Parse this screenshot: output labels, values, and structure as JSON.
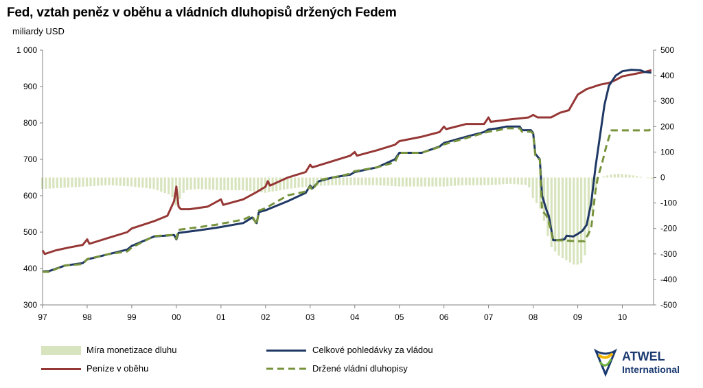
{
  "title": "Fed, vztah peněz v oběhu a vládních dluhopisů držených Fedem",
  "subtitle": "miliardy USD",
  "logo": {
    "line1": "ATWEL",
    "line2": "International"
  },
  "chart_data": {
    "type": "line",
    "x_ticks": [
      "97",
      "98",
      "99",
      "00",
      "01",
      "02",
      "03",
      "04",
      "05",
      "06",
      "07",
      "08",
      "09",
      "10"
    ],
    "x_range": [
      1997.0,
      2010.7
    ],
    "y_left": {
      "range": [
        300,
        1000
      ],
      "ticks": [
        "300",
        "400",
        "500",
        "600",
        "700",
        "800",
        "900",
        "1 000"
      ]
    },
    "y_right": {
      "range": [
        -500,
        500
      ],
      "ticks": [
        "-500",
        "-400",
        "-300",
        "-200",
        "-100",
        "0",
        "100",
        "200",
        "300",
        "400",
        "500"
      ]
    },
    "series": [
      {
        "name": "Míra monetizace dluhu",
        "type": "bar",
        "axis": "right",
        "color": "#d7e4bd",
        "points": [
          [
            1997.0,
            -45
          ],
          [
            1997.5,
            -40
          ],
          [
            1998.0,
            -35
          ],
          [
            1998.5,
            -30
          ],
          [
            1999.0,
            -35
          ],
          [
            1999.5,
            -45
          ],
          [
            1999.9,
            -70
          ],
          [
            2000.0,
            -110
          ],
          [
            2000.2,
            -50
          ],
          [
            2000.5,
            -45
          ],
          [
            2001.0,
            -50
          ],
          [
            2001.5,
            -50
          ],
          [
            2002.0,
            -60
          ],
          [
            2002.5,
            -45
          ],
          [
            2003.0,
            -35
          ],
          [
            2003.5,
            -30
          ],
          [
            2004.0,
            -30
          ],
          [
            2004.5,
            -30
          ],
          [
            2005.0,
            -35
          ],
          [
            2005.5,
            -35
          ],
          [
            2006.0,
            -35
          ],
          [
            2006.5,
            -30
          ],
          [
            2007.0,
            -30
          ],
          [
            2007.5,
            -25
          ],
          [
            2007.9,
            -30
          ],
          [
            2008.0,
            -80
          ],
          [
            2008.2,
            -130
          ],
          [
            2008.3,
            -210
          ],
          [
            2008.4,
            -270
          ],
          [
            2008.6,
            -310
          ],
          [
            2008.8,
            -330
          ],
          [
            2008.95,
            -345
          ],
          [
            2009.1,
            -335
          ],
          [
            2009.2,
            -290
          ],
          [
            2009.3,
            -170
          ],
          [
            2009.4,
            -50
          ],
          [
            2009.5,
            0
          ],
          [
            2009.7,
            10
          ],
          [
            2009.9,
            15
          ],
          [
            2010.2,
            10
          ],
          [
            2010.5,
            0
          ],
          [
            2010.65,
            -5
          ]
        ]
      },
      {
        "name": "Peníze v oběhu",
        "type": "line",
        "axis": "left",
        "color": "#953735",
        "points": [
          [
            1997.0,
            450
          ],
          [
            1997.05,
            440
          ],
          [
            1997.3,
            450
          ],
          [
            1997.6,
            458
          ],
          [
            1997.9,
            465
          ],
          [
            1998.0,
            480
          ],
          [
            1998.05,
            468
          ],
          [
            1998.5,
            485
          ],
          [
            1998.9,
            500
          ],
          [
            1999.0,
            510
          ],
          [
            1999.5,
            530
          ],
          [
            1999.8,
            545
          ],
          [
            1999.95,
            585
          ],
          [
            2000.0,
            625
          ],
          [
            2000.05,
            570
          ],
          [
            2000.1,
            563
          ],
          [
            2000.3,
            563
          ],
          [
            2000.7,
            570
          ],
          [
            2001.0,
            590
          ],
          [
            2001.05,
            575
          ],
          [
            2001.5,
            590
          ],
          [
            2001.8,
            610
          ],
          [
            2002.0,
            625
          ],
          [
            2002.05,
            640
          ],
          [
            2002.1,
            628
          ],
          [
            2002.5,
            650
          ],
          [
            2002.9,
            665
          ],
          [
            2003.0,
            685
          ],
          [
            2003.05,
            678
          ],
          [
            2003.5,
            695
          ],
          [
            2003.9,
            710
          ],
          [
            2004.0,
            720
          ],
          [
            2004.05,
            710
          ],
          [
            2004.5,
            725
          ],
          [
            2004.9,
            740
          ],
          [
            2005.0,
            750
          ],
          [
            2005.5,
            762
          ],
          [
            2005.9,
            775
          ],
          [
            2006.0,
            790
          ],
          [
            2006.05,
            783
          ],
          [
            2006.5,
            797
          ],
          [
            2006.9,
            797
          ],
          [
            2007.0,
            815
          ],
          [
            2007.05,
            803
          ],
          [
            2007.5,
            810
          ],
          [
            2007.9,
            815
          ],
          [
            2008.0,
            822
          ],
          [
            2008.1,
            815
          ],
          [
            2008.4,
            815
          ],
          [
            2008.6,
            828
          ],
          [
            2008.8,
            835
          ],
          [
            2009.0,
            878
          ],
          [
            2009.2,
            893
          ],
          [
            2009.5,
            905
          ],
          [
            2009.7,
            910
          ],
          [
            2009.85,
            918
          ],
          [
            2010.0,
            928
          ],
          [
            2010.3,
            935
          ],
          [
            2010.5,
            940
          ],
          [
            2010.65,
            945
          ]
        ]
      },
      {
        "name": "Celkové pohledávky za vládou",
        "type": "line",
        "axis": "left",
        "color": "#1f3864",
        "points": [
          [
            1997.0,
            392
          ],
          [
            1997.15,
            393
          ],
          [
            1997.5,
            408
          ],
          [
            1997.9,
            415
          ],
          [
            1998.0,
            425
          ],
          [
            1998.5,
            440
          ],
          [
            1998.9,
            452
          ],
          [
            1999.0,
            462
          ],
          [
            1999.5,
            488
          ],
          [
            1999.95,
            492
          ],
          [
            2000.0,
            480
          ],
          [
            2000.05,
            498
          ],
          [
            2000.5,
            505
          ],
          [
            2000.9,
            512
          ],
          [
            2001.5,
            525
          ],
          [
            2001.7,
            540
          ],
          [
            2001.8,
            525
          ],
          [
            2001.85,
            555
          ],
          [
            2002.0,
            560
          ],
          [
            2002.5,
            585
          ],
          [
            2002.9,
            608
          ],
          [
            2003.0,
            628
          ],
          [
            2003.05,
            620
          ],
          [
            2003.2,
            640
          ],
          [
            2003.5,
            650
          ],
          [
            2003.9,
            658
          ],
          [
            2004.0,
            665
          ],
          [
            2004.5,
            678
          ],
          [
            2004.9,
            700
          ],
          [
            2005.0,
            718
          ],
          [
            2005.5,
            718
          ],
          [
            2005.9,
            735
          ],
          [
            2006.0,
            745
          ],
          [
            2006.5,
            762
          ],
          [
            2006.9,
            775
          ],
          [
            2007.0,
            782
          ],
          [
            2007.2,
            785
          ],
          [
            2007.4,
            790
          ],
          [
            2007.7,
            790
          ],
          [
            2007.75,
            780
          ],
          [
            2007.95,
            780
          ],
          [
            2008.0,
            772
          ],
          [
            2008.05,
            715
          ],
          [
            2008.15,
            700
          ],
          [
            2008.2,
            600
          ],
          [
            2008.3,
            560
          ],
          [
            2008.35,
            545
          ],
          [
            2008.45,
            478
          ],
          [
            2008.55,
            478
          ],
          [
            2008.7,
            480
          ],
          [
            2008.75,
            490
          ],
          [
            2008.9,
            488
          ],
          [
            2009.0,
            495
          ],
          [
            2009.1,
            503
          ],
          [
            2009.2,
            520
          ],
          [
            2009.3,
            580
          ],
          [
            2009.4,
            680
          ],
          [
            2009.5,
            765
          ],
          [
            2009.6,
            850
          ],
          [
            2009.7,
            902
          ],
          [
            2009.85,
            930
          ],
          [
            2010.0,
            942
          ],
          [
            2010.2,
            946
          ],
          [
            2010.4,
            945
          ],
          [
            2010.5,
            940
          ],
          [
            2010.65,
            938
          ]
        ]
      },
      {
        "name": "Držené vládní dluhopisy",
        "type": "line",
        "dashed": true,
        "axis": "right",
        "color": "#77933c",
        "points": [
          [
            1997.0,
            -370
          ],
          [
            1997.15,
            -370
          ],
          [
            1997.5,
            -345
          ],
          [
            1997.9,
            -340
          ],
          [
            1998.0,
            -320
          ],
          [
            1998.5,
            -300
          ],
          [
            1998.9,
            -290
          ],
          [
            1999.0,
            -275
          ],
          [
            1999.5,
            -230
          ],
          [
            1999.95,
            -225
          ],
          [
            2000.0,
            -240
          ],
          [
            2000.05,
            -205
          ],
          [
            2000.5,
            -195
          ],
          [
            2000.9,
            -185
          ],
          [
            2001.5,
            -165
          ],
          [
            2001.7,
            -150
          ],
          [
            2001.8,
            -185
          ],
          [
            2001.85,
            -130
          ],
          [
            2002.0,
            -120
          ],
          [
            2002.5,
            -70
          ],
          [
            2002.9,
            -55
          ],
          [
            2003.0,
            -35
          ],
          [
            2003.05,
            -50
          ],
          [
            2003.2,
            -10
          ],
          [
            2003.5,
            0
          ],
          [
            2003.9,
            15
          ],
          [
            2004.0,
            25
          ],
          [
            2004.5,
            40
          ],
          [
            2004.9,
            60
          ],
          [
            2005.0,
            97
          ],
          [
            2005.5,
            97
          ],
          [
            2005.9,
            120
          ],
          [
            2006.0,
            130
          ],
          [
            2006.5,
            155
          ],
          [
            2006.9,
            175
          ],
          [
            2007.0,
            180
          ],
          [
            2007.2,
            185
          ],
          [
            2007.4,
            193
          ],
          [
            2007.7,
            193
          ],
          [
            2007.75,
            180
          ],
          [
            2007.95,
            180
          ],
          [
            2008.0,
            172
          ],
          [
            2008.05,
            85
          ],
          [
            2008.15,
            70
          ],
          [
            2008.2,
            -130
          ],
          [
            2008.3,
            -150
          ],
          [
            2008.35,
            -175
          ],
          [
            2008.45,
            -245
          ],
          [
            2009.0,
            -250
          ],
          [
            2009.15,
            -250
          ],
          [
            2009.3,
            -200
          ],
          [
            2009.4,
            -50
          ],
          [
            2009.45,
            0
          ],
          [
            2009.55,
            60
          ],
          [
            2009.65,
            130
          ],
          [
            2009.75,
            185
          ],
          [
            2010.0,
            185
          ],
          [
            2010.5,
            185
          ],
          [
            2010.6,
            185
          ],
          [
            2010.65,
            192
          ]
        ]
      }
    ]
  }
}
